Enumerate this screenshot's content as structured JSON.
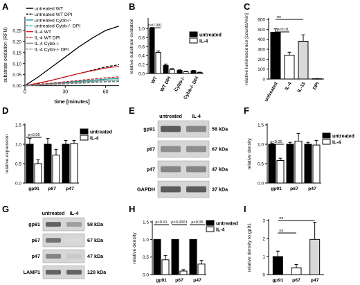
{
  "panels": {
    "A": {
      "letter": "A"
    },
    "B": {
      "letter": "B"
    },
    "C": {
      "letter": "C"
    },
    "D": {
      "letter": "D"
    },
    "E": {
      "letter": "E"
    },
    "F": {
      "letter": "F"
    },
    "G": {
      "letter": "G"
    },
    "H": {
      "letter": "H"
    },
    "I": {
      "letter": "I"
    }
  },
  "chart_data": [
    {
      "id": "A",
      "type": "line",
      "title": "",
      "xlabel": "time [minutes]",
      "ylabel": "substrate oxidation (RFU)",
      "xlim": [
        0,
        70
      ],
      "ylim": [
        -0.02,
        0.3
      ],
      "xticks": [
        0,
        30,
        60
      ],
      "yticks": [
        0.0,
        0.05,
        0.1,
        0.15,
        0.2,
        0.25
      ],
      "legend_position": "top-left",
      "series": [
        {
          "name": "untreated WT",
          "color": "#000000",
          "dash": "solid",
          "x": [
            0,
            10,
            20,
            30,
            40,
            50,
            60,
            70
          ],
          "y": [
            0,
            0.04,
            0.085,
            0.13,
            0.175,
            0.215,
            0.25,
            0.27
          ]
        },
        {
          "name": "untreated WT DPI",
          "color": "#000000",
          "dash": "dashed",
          "x": [
            0,
            10,
            20,
            30,
            40,
            50,
            60,
            70
          ],
          "y": [
            0,
            0.01,
            0.025,
            0.04,
            0.055,
            0.07,
            0.085,
            0.095
          ]
        },
        {
          "name": "untreated Cybb-/-",
          "color": "#1a9a9a",
          "dash": "solid",
          "x": [
            0,
            10,
            20,
            30,
            40,
            50,
            60,
            70
          ],
          "y": [
            0,
            0.005,
            0.01,
            0.015,
            0.02,
            0.025,
            0.03,
            0.033
          ]
        },
        {
          "name": "untreated Cybb-/- DPI",
          "color": "#1a9a9a",
          "dash": "dashed",
          "x": [
            0,
            10,
            20,
            30,
            40,
            50,
            60,
            70
          ],
          "y": [
            0,
            0.003,
            0.006,
            0.01,
            0.013,
            0.016,
            0.019,
            0.021
          ]
        },
        {
          "name": "IL-4 WT",
          "color": "#cc2020",
          "dash": "solid",
          "x": [
            0,
            10,
            20,
            30,
            40,
            50,
            60,
            70
          ],
          "y": [
            0,
            0.012,
            0.025,
            0.04,
            0.055,
            0.068,
            0.08,
            0.088
          ]
        },
        {
          "name": "IL-4 WT DPI",
          "color": "#cc2020",
          "dash": "dashed",
          "x": [
            0,
            10,
            20,
            30,
            40,
            50,
            60,
            70
          ],
          "y": [
            0,
            0.006,
            0.012,
            0.018,
            0.024,
            0.03,
            0.036,
            0.04
          ]
        },
        {
          "name": "IL-4 Cybb-/-",
          "color": "#8a8a8a",
          "dash": "solid",
          "x": [
            0,
            10,
            20,
            30,
            40,
            50,
            60,
            70
          ],
          "y": [
            0,
            0.004,
            0.008,
            0.012,
            0.016,
            0.02,
            0.024,
            0.027
          ]
        },
        {
          "name": "IL-4 Cybb-/- DPI",
          "color": "#8a8a8a",
          "dash": "dashed",
          "x": [
            0,
            10,
            20,
            30,
            40,
            50,
            60,
            70
          ],
          "y": [
            0,
            0.002,
            0.005,
            0.008,
            0.011,
            0.014,
            0.017,
            0.019
          ]
        }
      ]
    },
    {
      "id": "B",
      "type": "bar",
      "title": "",
      "xlabel": "",
      "ylabel": "relative substrate oxidation",
      "ylim": [
        0,
        1.2
      ],
      "yticks": [
        0.0,
        0.2,
        0.4,
        0.6,
        0.8,
        1.0
      ],
      "categories": [
        "WT",
        "WT DPI",
        "Cybb-/-",
        "Cybb-/- DPI"
      ],
      "legend_position": "top-right",
      "series": [
        {
          "name": "untreated",
          "fill": "#000000",
          "values": [
            1.0,
            0.18,
            0.07,
            0.06
          ],
          "errors": [
            0.02,
            0.03,
            0.01,
            0.01
          ]
        },
        {
          "name": "IL-4",
          "fill": "#ffffff",
          "values": [
            0.47,
            0.09,
            0.04,
            0.02
          ],
          "errors": [
            0.03,
            0.02,
            0.01,
            0.01
          ]
        }
      ],
      "annotations": [
        {
          "text": "p<0.001",
          "from": 0,
          "to": 0
        }
      ]
    },
    {
      "id": "C",
      "type": "bar",
      "title": "",
      "xlabel": "",
      "ylabel": "relative luminescence [counts/min]",
      "ylim": [
        0,
        600
      ],
      "yticks": [
        0,
        100,
        200,
        300,
        400,
        500,
        600
      ],
      "categories": [
        "untreated",
        "IL-4",
        "IL-13",
        "DPI"
      ],
      "fills": [
        "#000000",
        "#ffffff",
        "#d8d8d8",
        "#ffffff"
      ],
      "values": [
        470,
        240,
        380,
        3
      ],
      "errors": [
        35,
        30,
        65,
        2
      ],
      "annotations": [
        {
          "text": "ns",
          "from": 0,
          "to": 2
        },
        {
          "text": "p<0.01",
          "from": 0,
          "to": 1
        }
      ]
    },
    {
      "id": "D",
      "type": "bar",
      "title": "",
      "xlabel": "",
      "ylabel": "relative expression",
      "ylim": [
        0,
        1.5
      ],
      "yticks": [
        0.0,
        0.5,
        1.0,
        1.5
      ],
      "categories": [
        "gp91",
        "p67",
        "p47"
      ],
      "legend_position": "top-right",
      "series": [
        {
          "name": "untreated",
          "fill": "#000000",
          "values": [
            1.0,
            1.0,
            1.0
          ],
          "errors": [
            0.15,
            0.15,
            0.1
          ]
        },
        {
          "name": "IL-4",
          "fill": "#ffffff",
          "values": [
            0.5,
            0.72,
            1.02
          ],
          "errors": [
            0.1,
            0.15,
            0.08
          ]
        }
      ],
      "annotations": [
        {
          "text": "p<0.05",
          "from": 0,
          "to": 0
        }
      ]
    },
    {
      "id": "F",
      "type": "bar",
      "title": "",
      "xlabel": "",
      "ylabel": "relative density",
      "ylim": [
        0,
        1.5
      ],
      "yticks": [
        0.0,
        0.5,
        1.0,
        1.5
      ],
      "categories": [
        "gp91",
        "p67",
        "p47"
      ],
      "legend_position": "top-right",
      "series": [
        {
          "name": "untreated",
          "fill": "#000000",
          "values": [
            1.0,
            1.0,
            1.0
          ],
          "errors": [
            0.02,
            0.05,
            0.05
          ]
        },
        {
          "name": "IL-4",
          "fill": "#ffffff",
          "values": [
            0.58,
            1.08,
            0.98
          ],
          "errors": [
            0.06,
            0.2,
            0.12
          ]
        }
      ],
      "annotations": [
        {
          "text": "p<0.05",
          "from": 0,
          "to": 0
        }
      ]
    },
    {
      "id": "H",
      "type": "bar",
      "title": "",
      "xlabel": "",
      "ylabel": "relative density",
      "ylim": [
        0,
        1.5
      ],
      "yticks": [
        0.0,
        0.5,
        1.0,
        1.5
      ],
      "categories": [
        "gp91",
        "p67",
        "p47"
      ],
      "legend_position": "top-right",
      "series": [
        {
          "name": "untreated",
          "fill": "#000000",
          "values": [
            1.0,
            1.0,
            1.0
          ],
          "errors": [
            0.0,
            0.0,
            0.0
          ]
        },
        {
          "name": "IL-4",
          "fill": "#ffffff",
          "values": [
            0.42,
            0.1,
            0.3
          ],
          "errors": [
            0.12,
            0.04,
            0.1
          ]
        }
      ],
      "annotations": [
        {
          "text": "p<0.01",
          "from": 0,
          "to": 0
        },
        {
          "text": "p<0.0001",
          "from": 1,
          "to": 1
        },
        {
          "text": "p<0.05",
          "from": 2,
          "to": 2
        }
      ]
    },
    {
      "id": "I",
      "type": "bar",
      "title": "",
      "xlabel": "",
      "ylabel": "relative density to gp91",
      "ylim": [
        0,
        3
      ],
      "yticks": [
        0,
        1,
        2,
        3
      ],
      "categories": [
        "gp91",
        "p67",
        "p47"
      ],
      "fills": [
        "#000000",
        "#ffffff",
        "#d8d8d8"
      ],
      "values": [
        1.0,
        0.38,
        1.95
      ],
      "errors": [
        0.3,
        0.18,
        0.95
      ],
      "annotations": [
        {
          "text": "ns",
          "from": 0,
          "to": 2
        },
        {
          "text": "ns",
          "from": 0,
          "to": 1
        }
      ]
    }
  ],
  "blots": {
    "E": {
      "columns": [
        "untreated",
        "IL-4"
      ],
      "rows": [
        {
          "protein": "gp91",
          "size": "58 kDa",
          "lane_intensity": [
            0.85,
            0.6
          ]
        },
        {
          "protein": "p67",
          "size": "67 kDa",
          "lane_intensity": [
            0.55,
            0.55
          ]
        },
        {
          "protein": "p47",
          "size": "47 kDa",
          "lane_intensity": [
            0.6,
            0.6
          ]
        },
        {
          "protein": "GAPDH",
          "size": "37 kDa",
          "lane_intensity": [
            0.85,
            0.85
          ]
        }
      ]
    },
    "G": {
      "columns": [
        "untreated",
        "IL-4"
      ],
      "rows": [
        {
          "protein": "gp91",
          "size": "58 kDa",
          "lane_intensity": [
            0.8,
            0.45
          ]
        },
        {
          "protein": "p67",
          "size": "67 kDa",
          "lane_intensity": [
            0.7,
            0.1
          ]
        },
        {
          "protein": "p47",
          "size": "47 kDa",
          "lane_intensity": [
            0.6,
            0.2
          ]
        },
        {
          "protein": "LAMP1",
          "size": "120 kDa",
          "lane_intensity": [
            0.8,
            0.8
          ]
        }
      ]
    }
  }
}
